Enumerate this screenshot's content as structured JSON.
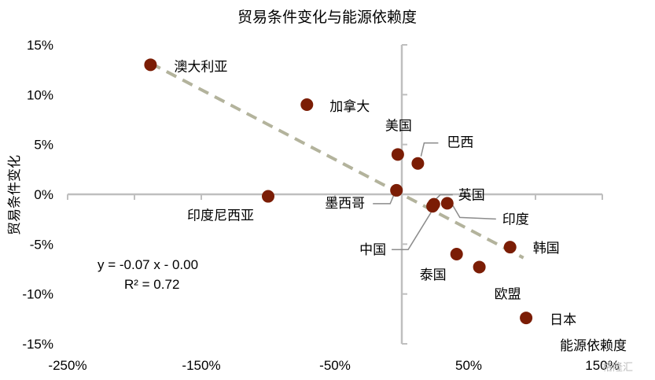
{
  "chart_data": {
    "type": "scatter",
    "title": "贸易条件变化与能源依赖度",
    "xlabel": "能源依赖度",
    "ylabel": "贸易条件变化",
    "xlim": [
      -250,
      150
    ],
    "ylim": [
      -15,
      15
    ],
    "x_ticks": [
      "-250%",
      "-150%",
      "-50%",
      "50%",
      "150%"
    ],
    "x_tick_values": [
      -250,
      -150,
      -50,
      50,
      150
    ],
    "y_ticks": [
      "15%",
      "10%",
      "5%",
      "0%",
      "-5%",
      "-10%",
      "-15%"
    ],
    "y_tick_values": [
      15,
      10,
      5,
      0,
      -5,
      -10,
      -15
    ],
    "grid": false,
    "marker_color": "#7b1d05",
    "trend_color": "#b3b39c",
    "axis_color": "#bfbfbf",
    "points": [
      {
        "label": "澳大利亚",
        "x": -188,
        "y": 13.0
      },
      {
        "label": "加拿大",
        "x": -71,
        "y": 9.0
      },
      {
        "label": "美国",
        "x": -3,
        "y": 4.0
      },
      {
        "label": "巴西",
        "x": 12,
        "y": 3.1
      },
      {
        "label": "印度尼西亚",
        "x": -100,
        "y": -0.2
      },
      {
        "label": "墨西哥",
        "x": -4,
        "y": 0.4
      },
      {
        "label": "英国",
        "x": 24,
        "y": -1.0
      },
      {
        "label": "印度",
        "x": 34,
        "y": -0.9
      },
      {
        "label": "中国",
        "x": 23,
        "y": -1.2
      },
      {
        "label": "韩国",
        "x": 81,
        "y": -5.3
      },
      {
        "label": "泰国",
        "x": 41,
        "y": -6.0
      },
      {
        "label": "欧盟",
        "x": 58,
        "y": -7.3
      },
      {
        "label": "日本",
        "x": 93,
        "y": -12.4
      }
    ],
    "trendline": {
      "slope": -0.07,
      "intercept": 0.0,
      "x_range": [
        -188,
        91
      ],
      "equation": "y = -0.07 x - 0.00",
      "r2": "R² = 0.72"
    },
    "watermark": "格隆汇"
  }
}
